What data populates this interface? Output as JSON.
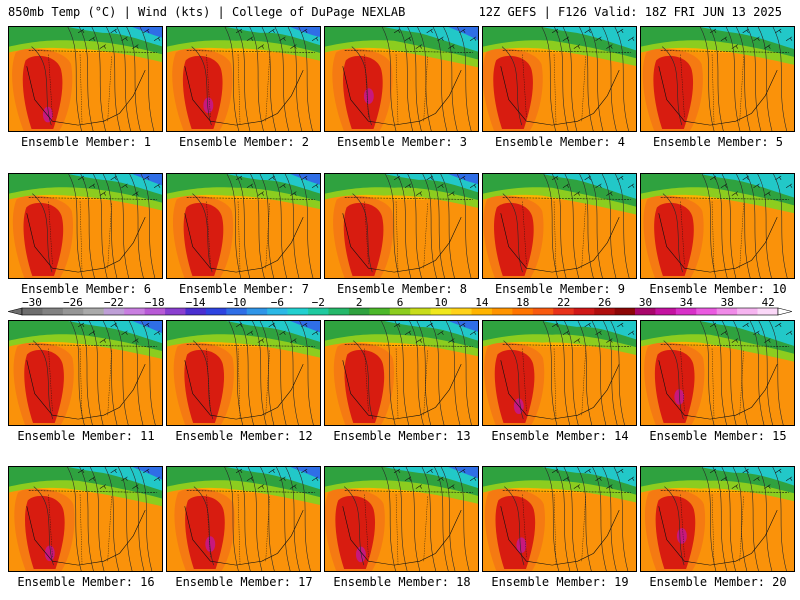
{
  "header": {
    "left_title": "850mb Temp (°C) | Wind (kts) | College of DuPage NEXLAB",
    "right_title": "12Z GEFS | F126 Valid: 18Z FRI JUN 13 2025"
  },
  "members": [
    {
      "label": "Ensemble Member: 1"
    },
    {
      "label": "Ensemble Member: 2"
    },
    {
      "label": "Ensemble Member: 3"
    },
    {
      "label": "Ensemble Member: 4"
    },
    {
      "label": "Ensemble Member: 5"
    },
    {
      "label": "Ensemble Member: 6"
    },
    {
      "label": "Ensemble Member: 7"
    },
    {
      "label": "Ensemble Member: 8"
    },
    {
      "label": "Ensemble Member: 9"
    },
    {
      "label": "Ensemble Member: 10"
    },
    {
      "label": "Ensemble Member: 11"
    },
    {
      "label": "Ensemble Member: 12"
    },
    {
      "label": "Ensemble Member: 13"
    },
    {
      "label": "Ensemble Member: 14"
    },
    {
      "label": "Ensemble Member: 15"
    },
    {
      "label": "Ensemble Member: 16"
    },
    {
      "label": "Ensemble Member: 17"
    },
    {
      "label": "Ensemble Member: 18"
    },
    {
      "label": "Ensemble Member: 19"
    },
    {
      "label": "Ensemble Member: 20"
    }
  ],
  "colorbar": {
    "tick_labels": [
      "−30",
      "−26",
      "−22",
      "−18",
      "−14",
      "−10",
      "−6",
      "−2",
      "2",
      "6",
      "10",
      "14",
      "18",
      "22",
      "26",
      "30",
      "34",
      "38",
      "42"
    ],
    "colors": [
      "#6e6e6e",
      "#828282",
      "#969696",
      "#aaaaaa",
      "#be9fd6",
      "#c97fe0",
      "#b85ad6",
      "#8a3fcf",
      "#4b2fd0",
      "#2e44e0",
      "#2f6ee6",
      "#2f95e8",
      "#2bb8e6",
      "#22d0d0",
      "#1fcaa0",
      "#25b86a",
      "#2fa23f",
      "#4cb82a",
      "#8ccd1f",
      "#c8dc1a",
      "#f0e81c",
      "#ffd21a",
      "#ffb400",
      "#ff9400",
      "#ff7400",
      "#f85a10",
      "#e8321a",
      "#d01818",
      "#b00e0e",
      "#8c0606",
      "#a8066a",
      "#c412a0",
      "#d830c8",
      "#ea5ae0",
      "#f08ae8",
      "#f6b4f0",
      "#fbd8f8"
    ],
    "map_colors": {
      "hot_core": "#d81c10",
      "warm": "#f57a12",
      "mild": "#ffb000",
      "lime": "#8ccd1f",
      "green": "#2fa23f",
      "cyan": "#22c8c8",
      "blue": "#2f6ee6",
      "magenta": "#c41890"
    }
  }
}
